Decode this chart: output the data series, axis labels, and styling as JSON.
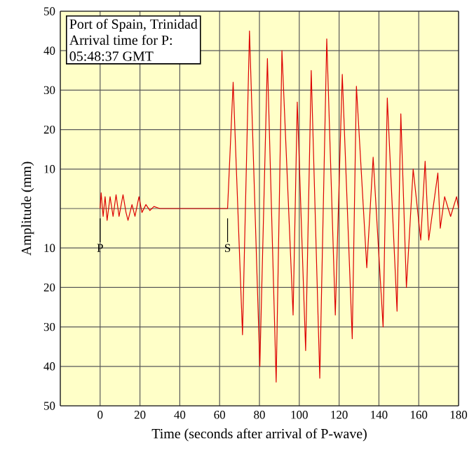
{
  "chart_data": {
    "type": "line",
    "xlabel": "Time (seconds after arrival of P-wave)",
    "ylabel": "Amplitude (mm)",
    "annotations": [
      "Port of Spain, Trinidad",
      "Arrival time for P:",
      "05:48:37 GMT",
      {
        "text": "P",
        "x": 0,
        "y": 0
      },
      {
        "text": "S",
        "x": 64,
        "y": 0
      }
    ],
    "xlim": [
      -20,
      180
    ],
    "ylim": [
      -50,
      50
    ],
    "xticks": [
      {
        "value": -20,
        "label": null
      },
      0,
      20,
      40,
      60,
      80,
      100,
      120,
      140,
      160,
      180
    ],
    "yticks": [
      {
        "value": -50,
        "label": "50"
      },
      {
        "value": -40,
        "label": "40"
      },
      {
        "value": -30,
        "label": "30"
      },
      {
        "value": -20,
        "label": "20"
      },
      {
        "value": -10,
        "label": "10"
      },
      {
        "value": 0,
        "label": null
      },
      10,
      20,
      30,
      40,
      50
    ],
    "grid": true,
    "series": [
      {
        "color": "#dd0000",
        "x": [
          0,
          0.5,
          1.5,
          2.5,
          3.5,
          5,
          6.5,
          8,
          9.5,
          11.5,
          13,
          14,
          16,
          17.5,
          19.5,
          21,
          23,
          25,
          27,
          30,
          64,
          66.8,
          71.5,
          75,
          80.2,
          84,
          88.4,
          91.3,
          96.9,
          99,
          103.2,
          106,
          110.3,
          113.8,
          118.1,
          121.6,
          126.6,
          128.7,
          133.9,
          137.1,
          142.1,
          144.2,
          149.1,
          151,
          153.8,
          157.2,
          161,
          163.2,
          165,
          169.6,
          170.8,
          173,
          176,
          179,
          180
        ],
        "values": [
          0,
          4,
          -2,
          3,
          -3,
          3,
          -2,
          3.5,
          -2,
          3.5,
          -1,
          -3,
          1,
          -2,
          3,
          -1,
          1,
          -0.5,
          0.5,
          0,
          0,
          32,
          -32,
          45,
          -40,
          38,
          -44,
          40,
          -27,
          27,
          -36,
          35,
          -43,
          43,
          -27,
          34,
          -33,
          31,
          -15,
          13,
          -30,
          28,
          -26,
          24,
          -20,
          10,
          -8,
          12,
          -8,
          9,
          -5,
          3,
          -2,
          3,
          0
        ]
      }
    ]
  }
}
